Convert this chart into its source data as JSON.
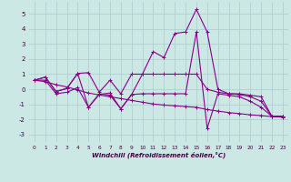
{
  "xlabel": "Windchill (Refroidissement éolien,°C)",
  "bg_color": "#cce8e4",
  "line_color": "#880088",
  "grid_color": "#aacccc",
  "xlim": [
    -0.5,
    23.5
  ],
  "ylim": [
    -3.5,
    5.8
  ],
  "yticks": [
    -3,
    -2,
    -1,
    0,
    1,
    2,
    3,
    4,
    5
  ],
  "xticks": [
    0,
    1,
    2,
    3,
    4,
    5,
    6,
    7,
    8,
    9,
    10,
    11,
    12,
    13,
    14,
    15,
    16,
    17,
    18,
    19,
    20,
    21,
    22,
    23
  ],
  "series": [
    [
      0.6,
      0.8,
      -0.15,
      0.05,
      1.05,
      1.1,
      -0.2,
      0.6,
      -0.3,
      1.0,
      1.0,
      1.0,
      1.0,
      1.0,
      1.0,
      1.0,
      0.0,
      -0.2,
      -0.3,
      -0.3,
      -0.4,
      -0.5,
      -1.8,
      -1.8
    ],
    [
      0.6,
      0.8,
      -0.15,
      0.05,
      1.05,
      -1.2,
      -0.3,
      -0.4,
      -1.3,
      -0.35,
      1.0,
      2.5,
      2.1,
      3.7,
      3.8,
      5.3,
      3.8,
      0.0,
      -0.3,
      -0.35,
      -0.5,
      -0.8,
      -1.8,
      -1.8
    ],
    [
      0.6,
      0.6,
      -0.3,
      -0.2,
      0.1,
      -1.2,
      -0.35,
      -0.25,
      -1.3,
      -0.35,
      -0.3,
      -0.3,
      -0.3,
      -0.3,
      -0.3,
      3.8,
      -2.6,
      -0.3,
      -0.4,
      -0.5,
      -0.8,
      -1.2,
      -1.8,
      -1.8
    ],
    [
      0.6,
      0.5,
      0.3,
      0.15,
      -0.05,
      -0.25,
      -0.38,
      -0.5,
      -0.62,
      -0.74,
      -0.86,
      -0.98,
      -1.05,
      -1.1,
      -1.15,
      -1.2,
      -1.35,
      -1.45,
      -1.55,
      -1.62,
      -1.7,
      -1.75,
      -1.82,
      -1.85
    ]
  ]
}
